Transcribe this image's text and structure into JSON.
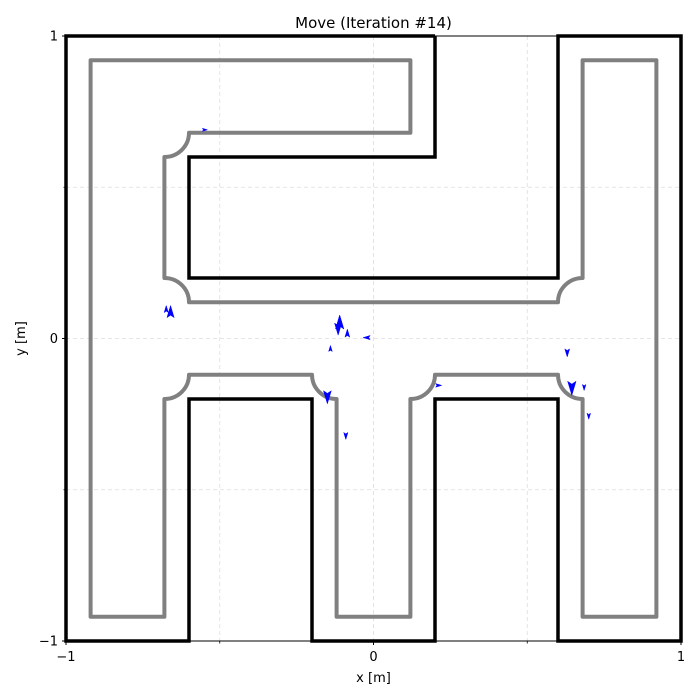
{
  "chart_data": {
    "type": "scatter",
    "title": "Move (Iteration #14)",
    "xlabel": "x [m]",
    "ylabel": "y [m]",
    "xlim": [
      -1,
      1
    ],
    "ylim": [
      -1,
      1
    ],
    "xticks": [
      -1,
      0,
      1
    ],
    "yticks": [
      -1,
      0,
      1
    ],
    "xtick_labels": [
      "−1",
      "0",
      "1"
    ],
    "ytick_labels": [
      "−1",
      "0",
      "1"
    ],
    "minor_grid_x": [
      -0.5,
      0.5
    ],
    "minor_grid_y": [
      -0.5,
      0.5
    ],
    "grid": true,
    "colors": {
      "walls": "#000000",
      "clearance": "#808080",
      "agents": "#0000ff"
    },
    "walls": [
      [
        [
          0.2,
          1.0
        ],
        [
          0.2,
          0.6
        ],
        [
          -0.6,
          0.6
        ],
        [
          -0.6,
          0.2
        ],
        [
          0.6,
          0.2
        ],
        [
          0.6,
          1.0
        ],
        [
          1.0,
          1.0
        ],
        [
          1.0,
          -1.0
        ],
        [
          0.6,
          -1.0
        ],
        [
          0.6,
          -0.2
        ],
        [
          0.2,
          -0.2
        ],
        [
          0.2,
          -1.0
        ],
        [
          -0.2,
          -1.0
        ],
        [
          -0.2,
          -0.2
        ],
        [
          -0.6,
          -0.2
        ],
        [
          -0.6,
          -1.0
        ],
        [
          -1.0,
          -1.0
        ],
        [
          -1.0,
          1.0
        ],
        [
          0.2,
          1.0
        ]
      ]
    ],
    "clearance_paths": [
      "M 0.12 0.92 L -0.92 0.92 L -0.92 -0.92 L -0.68 -0.92 L -0.68 -0.2 A 0.08 0.08 0 0 1 -0.6 -0.12 L -0.2 -0.12 A 0.08 0.08 0 0 1 -0.12 -0.2 L -0.12 -0.92 L 0.12 -0.92 L 0.12 -0.2 A 0.08 0.08 0 0 1 0.2 -0.12 L 0.6 -0.12 A 0.08 0.08 0 0 1 0.68 -0.2 L 0.68 -0.92 L 0.92 -0.92 L 0.92 0.92 L 0.68 0.92 L 0.68 0.2 A 0.08 0.08 0 0 1 0.6 0.12 L -0.6 0.12 A 0.08 0.08 0 0 1 -0.68 0.2 L -0.68 0.6 A 0.08 0.08 0 0 1 -0.6 0.68 L 0.12 0.68 Z"
    ],
    "agents": [
      {
        "x": -0.66,
        "y": 0.085,
        "dir": "up",
        "size": 1.2
      },
      {
        "x": -0.674,
        "y": 0.095,
        "dir": "up",
        "size": 0.7
      },
      {
        "x": -0.11,
        "y": 0.05,
        "dir": "up",
        "size": 1.4
      },
      {
        "x": -0.115,
        "y": 0.035,
        "dir": "down",
        "size": 1.2
      },
      {
        "x": -0.085,
        "y": 0.015,
        "dir": "up",
        "size": 0.8
      },
      {
        "x": -0.02,
        "y": 0.003,
        "dir": "left",
        "size": 0.7
      },
      {
        "x": -0.14,
        "y": -0.035,
        "dir": "up",
        "size": 0.6
      },
      {
        "x": -0.15,
        "y": -0.19,
        "dir": "down",
        "size": 1.3
      },
      {
        "x": -0.09,
        "y": -0.32,
        "dir": "down",
        "size": 0.7
      },
      {
        "x": 0.21,
        "y": -0.155,
        "dir": "right",
        "size": 0.6
      },
      {
        "x": 0.63,
        "y": -0.045,
        "dir": "down",
        "size": 0.8
      },
      {
        "x": 0.645,
        "y": -0.16,
        "dir": "down",
        "size": 1.4
      },
      {
        "x": 0.685,
        "y": -0.16,
        "dir": "down",
        "size": 0.6
      },
      {
        "x": 0.7,
        "y": -0.255,
        "dir": "down",
        "size": 0.6
      },
      {
        "x": -0.55,
        "y": 0.69,
        "dir": "right",
        "size": 0.5
      }
    ]
  }
}
